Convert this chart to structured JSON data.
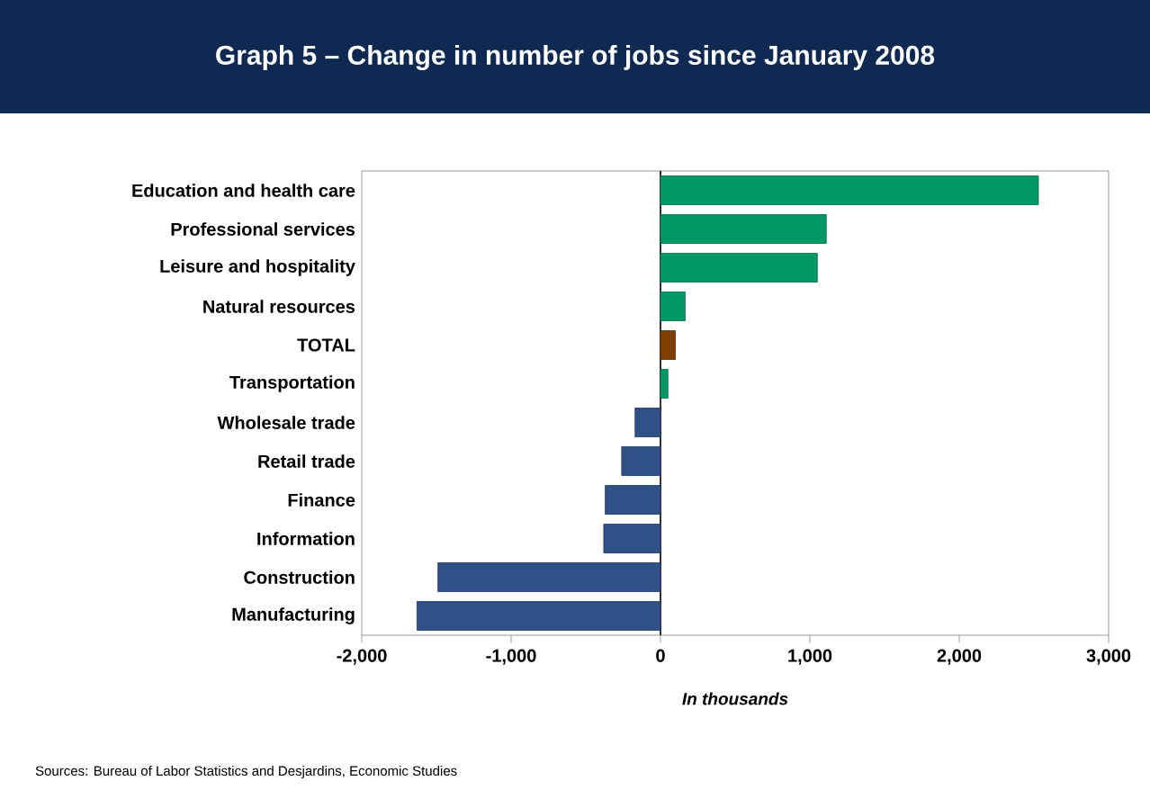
{
  "chart_data": {
    "type": "bar",
    "orientation": "horizontal",
    "title": "Graph 5 – Change in number of jobs since January 2008",
    "categories": [
      "Education and health care",
      "Professional services",
      "Leisure and hospitality",
      "Natural resources",
      "TOTAL",
      "Transportation",
      "Wholesale trade",
      "Retail trade",
      "Finance",
      "Information",
      "Construction",
      "Manufacturing"
    ],
    "values": [
      2530,
      1110,
      1050,
      165,
      100,
      50,
      -170,
      -260,
      -370,
      -380,
      -1490,
      -1630
    ],
    "colors": [
      "#009966",
      "#009966",
      "#009966",
      "#009966",
      "#7f3f00",
      "#009966",
      "#2e5288",
      "#2e5288",
      "#2e5288",
      "#2e5288",
      "#2e5288",
      "#2e5288"
    ],
    "xlim": [
      -2000,
      3000
    ],
    "xticks": [
      {
        "value": -2000,
        "label": "-2,000"
      },
      {
        "value": -1000,
        "label": "-1,000"
      },
      0,
      {
        "value": 1000,
        "label": "1,000"
      },
      {
        "value": 2000,
        "label": "2,000"
      },
      {
        "value": 3000,
        "label": "3,000"
      }
    ],
    "xlabel": "In thousands",
    "annotations": [
      "Sources: Bureau of Labor Statistics and Desjardins, Economic Studies"
    ]
  }
}
